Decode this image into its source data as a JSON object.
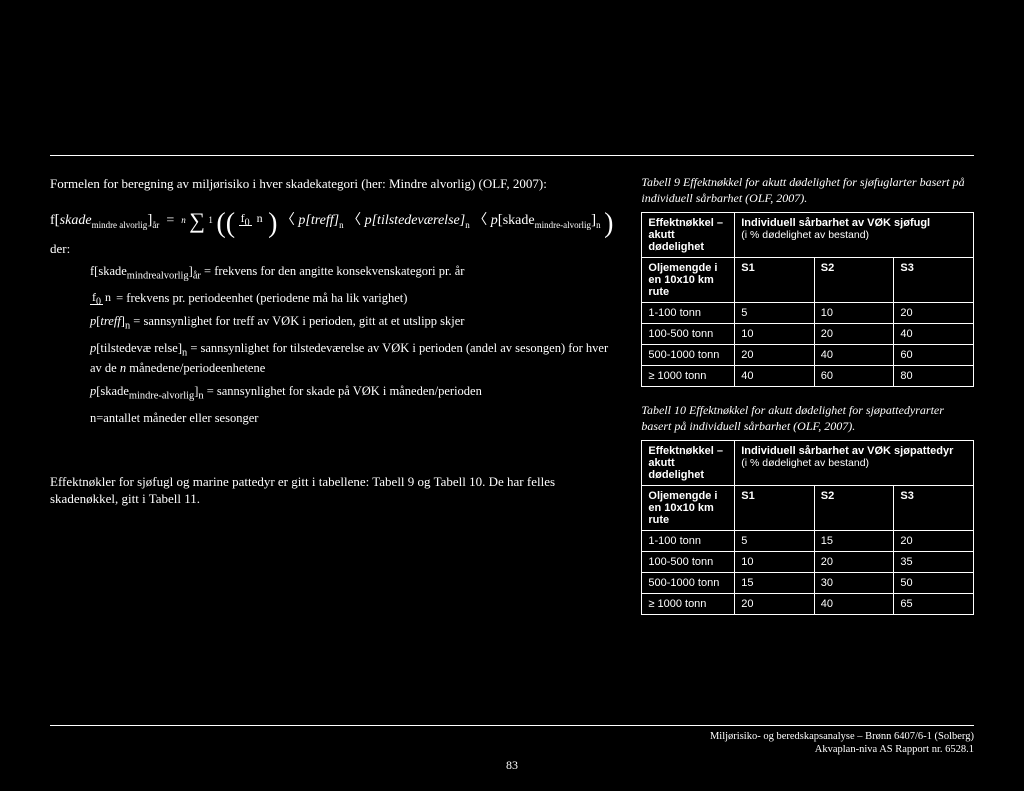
{
  "intro": "Formelen for beregning av miljørisiko i hver skadekategori (her: Mindre alvorlig) (OLF, 2007):",
  "formula": {
    "lhs_base": "f",
    "lhs_bracket": "skade",
    "lhs_sub1": "mindre alvorlig",
    "lhs_sub2": "år",
    "sigma_top": "n",
    "sigma_bot": "1",
    "frac_num": "f",
    "frac_num_sub": "0",
    "frac_den": "n",
    "t1": "p[treff]",
    "t1_sub": "n",
    "t2": "p[tilstedeværelse]",
    "t2_sub": "n",
    "t3_base": "p",
    "t3_br": "skade",
    "t3_sub1": "mindre-alvorlig",
    "t3_sub2": "n"
  },
  "der": "der:",
  "defs": [
    "f[skade<sub>mindrealvorlig</sub>]<sub>år</sub> = frekvens for den angitte konsekvenskategori pr. år",
    "<span class='frac'><span class='num'>f<sub>0</sub></span><span class='den'>n</span></span> = frekvens pr. periodeenhet (periodene må ha lik varighet)",
    "<i>p</i>[<i>treff</i>]<sub>n</sub> = sannsynlighet for treff av VØK i perioden, gitt at et utslipp skjer",
    "<i>p</i>[tilstedevæ relse]<sub>n</sub> = sannsynlighet for tilstedeværelse av VØK i perioden (andel av sesongen) for hver av de <i>n</i> månedene/periodeenhetene",
    "<i>p</i>[skade<sub>mindre-alvorlig</sub>]<sub>n</sub> = sannsynlighet for skade på VØK i måneden/perioden",
    "n=antallet måneder eller sesonger"
  ],
  "below": "Effektnøkler for sjøfugl og marine pattedyr er gitt i tabellene: Tabell 9 og Tabell 10. De har felles skadenøkkel, gitt i Tabell 11.",
  "table9": {
    "caption": "Tabell 9 Effektnøkkel for akutt dødelighet for sjøfuglarter basert på individuell sårbarhet (OLF, 2007).",
    "h1": "Effektnøkkel – akutt dødelighet",
    "h2": "Individuell sårbarhet av VØK sjøfugl",
    "h2sub": "(i % dødelighet av bestand)",
    "sub1": "Oljemengde i en 10x10 km rute",
    "s1": "S1",
    "s2": "S2",
    "s3": "S3",
    "rows": [
      {
        "r": "1-100 tonn",
        "a": "5",
        "b": "10",
        "c": "20"
      },
      {
        "r": "100-500 tonn",
        "a": "10",
        "b": "20",
        "c": "40"
      },
      {
        "r": "500-1000 tonn",
        "a": "20",
        "b": "40",
        "c": "60"
      },
      {
        "r": "≥ 1000 tonn",
        "a": "40",
        "b": "60",
        "c": "80"
      }
    ]
  },
  "table10": {
    "caption": "Tabell 10 Effektnøkkel for akutt dødelighet for sjøpattedyrarter basert på individuell sårbarhet (OLF, 2007).",
    "h1": "Effektnøkkel – akutt dødelighet",
    "h2": "Individuell sårbarhet av VØK sjøpattedyr",
    "h2sub": "(i % dødelighet av bestand)",
    "sub1": "Oljemengde i en 10x10 km rute",
    "s1": "S1",
    "s2": "S2",
    "s3": "S3",
    "rows": [
      {
        "r": "1-100 tonn",
        "a": "5",
        "b": "15",
        "c": "20"
      },
      {
        "r": "100-500 tonn",
        "a": "10",
        "b": "20",
        "c": "35"
      },
      {
        "r": "500-1000 tonn",
        "a": "15",
        "b": "30",
        "c": "50"
      },
      {
        "r": "≥ 1000 tonn",
        "a": "20",
        "b": "40",
        "c": "65"
      }
    ]
  },
  "footer_l1": "Miljørisiko- og beredskapsanalyse – Brønn 6407/6-1 (Solberg)",
  "footer_l2": "Akvaplan-niva AS Rapport nr. 6528.1",
  "page": "83"
}
